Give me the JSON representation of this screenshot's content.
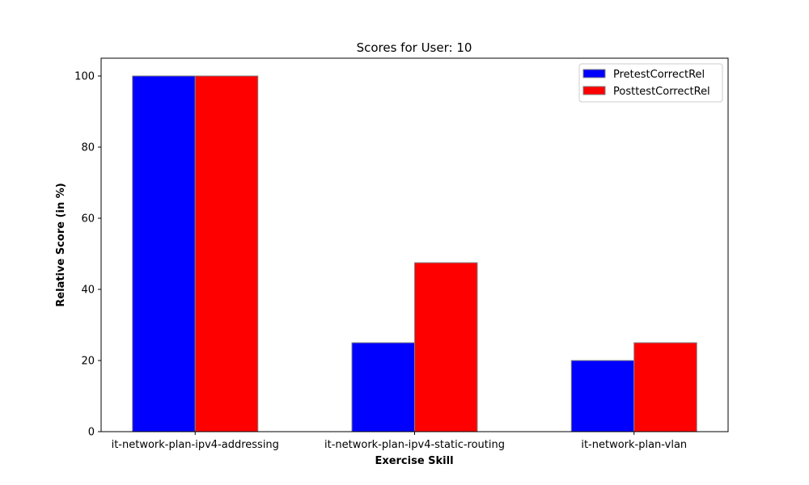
{
  "chart_data": {
    "type": "bar",
    "title": "Scores for User: 10",
    "xlabel": "Exercise Skill",
    "ylabel": "Relative Score (in %)",
    "categories": [
      "it-network-plan-ipv4-addressing",
      "it-network-plan-ipv4-static-routing",
      "it-network-plan-vlan"
    ],
    "series": [
      {
        "name": "PretestCorrectRel",
        "values": [
          100,
          25,
          20
        ],
        "color": "#0000ff"
      },
      {
        "name": "PosttestCorrectRel",
        "values": [
          100,
          47.5,
          25
        ],
        "color": "#ff0000"
      }
    ],
    "ylim": [
      0,
      105
    ],
    "yticks": [
      0,
      20,
      40,
      60,
      80,
      100
    ],
    "grid": false,
    "legend_position": "top-right",
    "bar_edge_color": "#808080"
  }
}
